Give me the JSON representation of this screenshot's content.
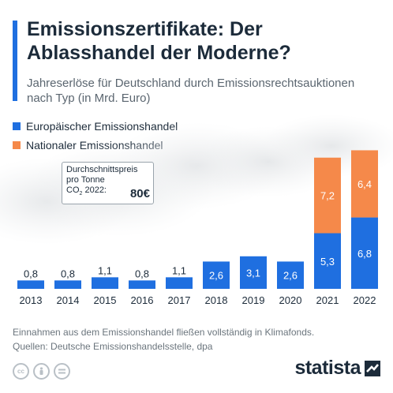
{
  "header": {
    "title": "Emissionszertifikate: Der Ablasshandel der Moderne?",
    "subtitle": "Jahreserlöse für Deutschland durch Emissionsrechtsauktionen nach Typ (in Mrd. Euro)"
  },
  "colors": {
    "eu": "#1f6fe0",
    "national": "#f5894a",
    "accent": "#1f6fe0",
    "text": "#1c2b3a"
  },
  "annotation": {
    "label_line1": "Durchschnittspreis",
    "label_line2": "pro Tonne",
    "label_line3_pre": "CO",
    "label_line3_sub": "2",
    "label_line3_post": " 2022:",
    "value": "80€"
  },
  "footer": {
    "note": "Einnahmen aus dem Emissionshandel fließen vollständig in Klimafonds.",
    "source": "Quellen: Deutsche Emissionshandelsstelle, dpa"
  },
  "brand": {
    "name": "statista"
  },
  "license_icons": [
    "cc-icon",
    "by-icon",
    "nd-icon"
  ],
  "chart_data": {
    "type": "bar",
    "stacked": true,
    "categories": [
      "2013",
      "2014",
      "2015",
      "2016",
      "2017",
      "2018",
      "2019",
      "2020",
      "2021",
      "2022"
    ],
    "series": [
      {
        "name": "Europäischer Emissionshandel",
        "color": "#1f6fe0",
        "values": [
          0.8,
          0.8,
          1.1,
          0.8,
          1.1,
          2.6,
          3.1,
          2.6,
          5.3,
          6.8
        ],
        "labels": [
          "0,8",
          "0,8",
          "1,1",
          "0,8",
          "1,1",
          "2,6",
          "3,1",
          "2,6",
          "5,3",
          "6,8"
        ]
      },
      {
        "name": "Nationaler Emissionshandel",
        "color": "#f5894a",
        "values": [
          0,
          0,
          0,
          0,
          0,
          0,
          0,
          0,
          7.2,
          6.4
        ],
        "labels": [
          "",
          "",
          "",
          "",
          "",
          "",
          "",
          "",
          "7,2",
          "6,4"
        ]
      }
    ],
    "legend_position": "top-left",
    "grid": false
  }
}
